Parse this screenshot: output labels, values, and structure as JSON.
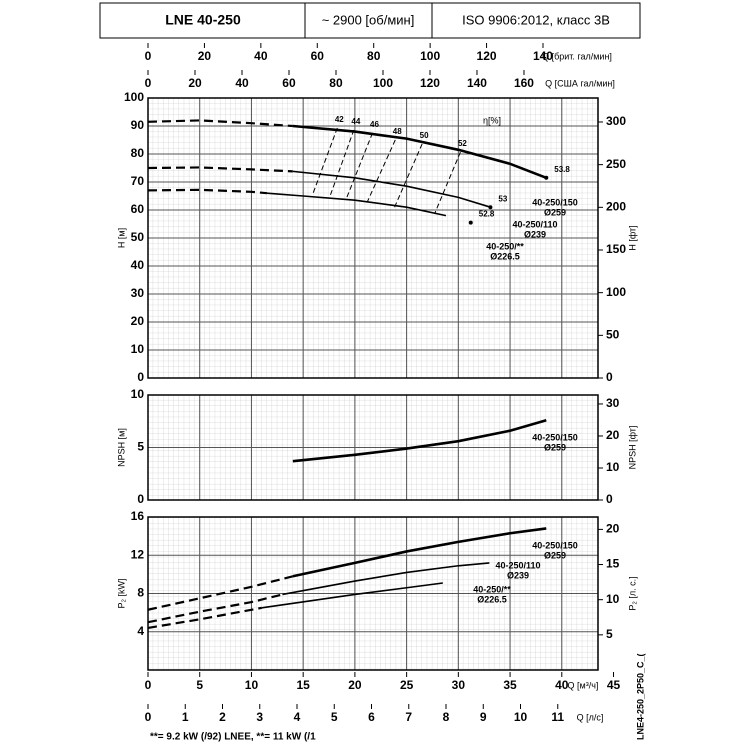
{
  "header": {
    "model": "LNE 40-250",
    "speed": "~ 2900 [об/мин]",
    "standard": "ISO 9906:2012, класс 3B"
  },
  "x_axes": [
    {
      "label": "Q [м³/ч]",
      "xlim": [
        0,
        43.5
      ],
      "xticks": [
        0,
        5,
        10,
        15,
        20,
        25,
        30,
        35,
        40,
        45
      ]
    },
    {
      "label": "Q [брит. гал/мин]",
      "xlim": [
        0,
        159.5
      ],
      "xticks": [
        0,
        20,
        40,
        60,
        80,
        100,
        120,
        140
      ]
    },
    {
      "label": "Q [США гал/мин]",
      "xlim": [
        0,
        191.5
      ],
      "xticks": [
        0,
        20,
        40,
        60,
        80,
        100,
        120,
        140,
        160
      ]
    },
    {
      "label": "Q [л/с]",
      "xlim": [
        0,
        12.08
      ],
      "xticks": [
        0,
        1,
        2,
        3,
        4,
        5,
        6,
        7,
        8,
        9,
        10,
        11
      ]
    }
  ],
  "chart_data": [
    {
      "type": "line",
      "ylabel": "H [м]",
      "y2label": "H [фт]",
      "ylim": [
        0,
        100
      ],
      "yticks": [
        0,
        10,
        20,
        30,
        40,
        50,
        60,
        70,
        80,
        90,
        100
      ],
      "y2lim": [
        0,
        328.1
      ],
      "y2ticks": [
        0,
        50,
        100,
        150,
        200,
        250,
        300
      ],
      "grid": true,
      "series": [
        {
          "name": "40-250/150",
          "diameter": "Ø259",
          "color": "#000000",
          "dashed_x": [
            0,
            5,
            10,
            14
          ],
          "dashed_values": [
            91.5,
            92,
            91,
            90
          ],
          "x": [
            14,
            20,
            25,
            30,
            35,
            38.5
          ],
          "values": [
            90,
            88,
            85.5,
            81.5,
            76.5,
            71.5
          ]
        },
        {
          "name": "40-250/110",
          "diameter": "Ø239",
          "color": "#000000",
          "dashed_x": [
            0,
            5,
            10,
            14
          ],
          "dashed_values": [
            75,
            75.2,
            74.5,
            73.8
          ],
          "x": [
            14,
            20,
            25,
            30,
            33.1
          ],
          "values": [
            73.8,
            71.5,
            68.5,
            64.5,
            61
          ]
        },
        {
          "name": "40-250/**",
          "diameter": "Ø226.5",
          "color": "#000000",
          "dashed_x": [
            0,
            5,
            10,
            11.5
          ],
          "dashed_values": [
            67,
            67.2,
            66.5,
            66
          ],
          "x": [
            11.5,
            15,
            20,
            25,
            28.8
          ],
          "values": [
            66,
            65,
            63.5,
            61,
            58
          ]
        }
      ],
      "efficiency_label": "η[%]",
      "efficiency_lines": [
        {
          "name": "42",
          "x": [
            18.3,
            15.9
          ],
          "values": [
            89.3,
            65.4
          ]
        },
        {
          "name": "44",
          "x": [
            19.9,
            17.6
          ],
          "values": [
            88.6,
            65
          ]
        },
        {
          "name": "46",
          "x": [
            21.7,
            19.2
          ],
          "values": [
            87.5,
            64.3
          ]
        },
        {
          "name": "48",
          "x": [
            23.9,
            21.2
          ],
          "values": [
            85,
            62.9
          ]
        },
        {
          "name": "50",
          "x": [
            26.5,
            23.8
          ],
          "values": [
            83.6,
            60.7
          ]
        },
        {
          "name": "52",
          "x": [
            30.2,
            27.7
          ],
          "values": [
            80.7,
            58.6
          ]
        }
      ],
      "points": [
        {
          "label": "53.8",
          "x": 38.5,
          "y": 71.5
        },
        {
          "label": "53",
          "x": 33.1,
          "y": 61
        },
        {
          "label": "52.8",
          "x": 31.2,
          "y": 55.5
        }
      ]
    },
    {
      "type": "line",
      "ylabel": "NPSH [м]",
      "y2label": "NPSH [фт]",
      "ylim": [
        0,
        10
      ],
      "yticks": [
        0,
        5,
        10
      ],
      "y2lim": [
        0,
        32.8
      ],
      "y2ticks": [
        0,
        10,
        20,
        30
      ],
      "grid": true,
      "series": [
        {
          "name": "40-250/150",
          "diameter": "Ø259",
          "color": "#000000",
          "x": [
            14,
            20,
            25,
            30,
            35,
            38.5
          ],
          "values": [
            3.7,
            4.3,
            4.9,
            5.6,
            6.6,
            7.6
          ]
        }
      ]
    },
    {
      "type": "line",
      "ylabel": "P₂ [kW]",
      "y2label": "P₂ [л. с.]",
      "ylim": [
        0,
        16
      ],
      "yticks": [
        4,
        8,
        12,
        16
      ],
      "y2lim": [
        0,
        21.76
      ],
      "y2ticks": [
        5,
        10,
        15,
        20
      ],
      "grid": true,
      "series": [
        {
          "name": "40-250/150",
          "diameter": "Ø259",
          "color": "#000000",
          "dashed_x": [
            0,
            5,
            10,
            14
          ],
          "dashed_values": [
            6.3,
            7.5,
            8.7,
            9.8
          ],
          "x": [
            14,
            20,
            25,
            30,
            35,
            38.5
          ],
          "values": [
            9.8,
            11.2,
            12.4,
            13.4,
            14.3,
            14.8
          ]
        },
        {
          "name": "40-250/110",
          "diameter": "Ø239",
          "color": "#000000",
          "dashed_x": [
            0,
            5,
            10,
            13
          ],
          "dashed_values": [
            5,
            6.1,
            7.1,
            7.9
          ],
          "x": [
            13,
            20,
            25,
            30,
            33
          ],
          "values": [
            7.9,
            9.3,
            10.2,
            10.9,
            11.2
          ]
        },
        {
          "name": "40-250/**",
          "diameter": "Ø226.5",
          "color": "#000000",
          "dashed_x": [
            0,
            5,
            11
          ],
          "dashed_values": [
            4.4,
            5.3,
            6.5
          ],
          "x": [
            11,
            20,
            25,
            28.5
          ],
          "values": [
            6.5,
            7.9,
            8.6,
            9.1
          ]
        }
      ]
    }
  ],
  "footer": "**= 9.2 kW (/92) LNEE, **= 11 kW (/1",
  "code": "LNE4-250_2P50_C_("
}
